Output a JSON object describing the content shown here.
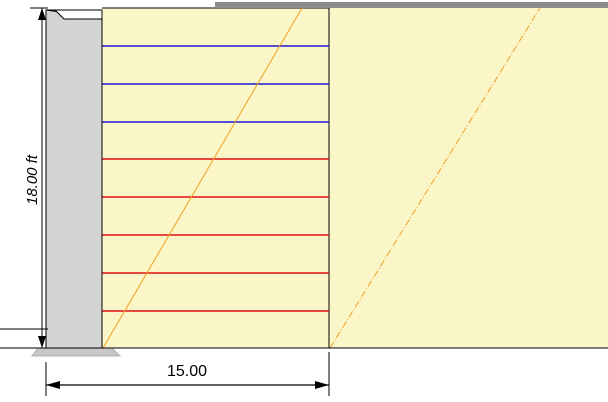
{
  "wall_height_label": "18.00 ft",
  "reinforced_length_label": "15.00",
  "reinforcement_layers": [
    {
      "color": "#1a1ad8"
    },
    {
      "color": "#1a1ad8"
    },
    {
      "color": "#1a1ad8"
    },
    {
      "color": "#e01010"
    },
    {
      "color": "#e01010"
    },
    {
      "color": "#e01010"
    },
    {
      "color": "#e01010"
    },
    {
      "color": "#e01010"
    }
  ],
  "colors": {
    "soil_fill": "#faf6c8",
    "wall_fill": "#d4d4d4",
    "surcharge_bar": "#8c8c8c",
    "failure_line": "#f0a020",
    "outline": "#000000"
  }
}
